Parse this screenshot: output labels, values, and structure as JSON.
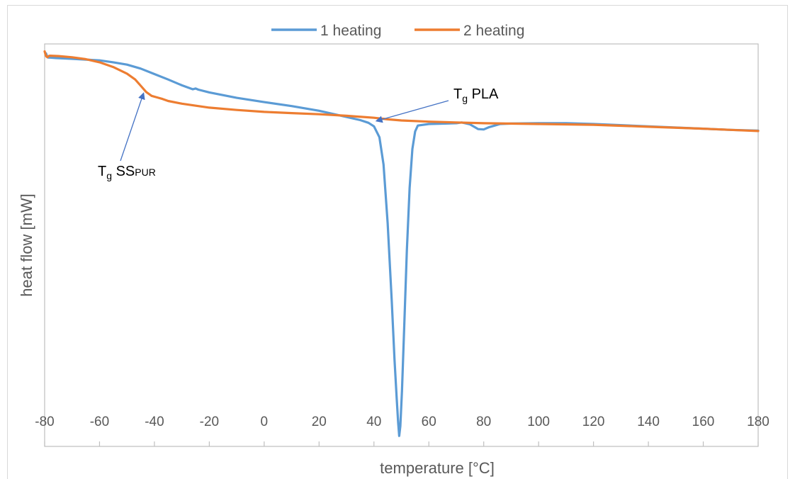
{
  "chart_data": {
    "type": "line",
    "title": "",
    "xlabel": "temperature [°C]",
    "ylabel": "heat flow [mW]",
    "xlim": [
      -80,
      180
    ],
    "y_ticks_shown": false,
    "x_ticks": [
      -80,
      -60,
      -40,
      -20,
      0,
      20,
      40,
      60,
      80,
      100,
      120,
      140,
      160,
      180
    ],
    "legend": {
      "position": "top-center"
    },
    "series": [
      {
        "name": "1 heating",
        "color": "#5b9bd5",
        "points": [
          [
            -79.5,
            98.5
          ],
          [
            -79,
            97.5
          ],
          [
            -78.5,
            97.4
          ],
          [
            -78,
            97.4
          ],
          [
            -76,
            97.3
          ],
          [
            -70,
            97.1
          ],
          [
            -60,
            96.7
          ],
          [
            -55,
            96.2
          ],
          [
            -50,
            95.6
          ],
          [
            -45,
            94.6
          ],
          [
            -40,
            93.2
          ],
          [
            -35,
            91.8
          ],
          [
            -30,
            90.3
          ],
          [
            -26,
            89.3
          ],
          [
            -25,
            89.5
          ],
          [
            -24,
            89.2
          ],
          [
            -20,
            88.5
          ],
          [
            -10,
            87.1
          ],
          [
            0,
            86.0
          ],
          [
            10,
            85.0
          ],
          [
            20,
            83.8
          ],
          [
            30,
            82.2
          ],
          [
            35,
            81.4
          ],
          [
            38,
            80.7
          ],
          [
            40,
            79.8
          ],
          [
            42,
            77.0
          ],
          [
            43.5,
            70.0
          ],
          [
            45,
            55.0
          ],
          [
            46.5,
            35.0
          ],
          [
            47.5,
            20.0
          ],
          [
            48.3,
            10.0
          ],
          [
            48.8,
            4.0
          ],
          [
            49.2,
            0.5
          ],
          [
            49.6,
            3.0
          ],
          [
            50.2,
            12.0
          ],
          [
            51,
            28.0
          ],
          [
            52,
            48.0
          ],
          [
            53,
            64.0
          ],
          [
            54,
            74.0
          ],
          [
            55,
            78.5
          ],
          [
            56,
            80.0
          ],
          [
            60,
            80.4
          ],
          [
            66,
            80.5
          ],
          [
            70,
            80.6
          ],
          [
            72,
            80.8
          ],
          [
            75,
            80.3
          ],
          [
            78,
            79.1
          ],
          [
            80,
            79.0
          ],
          [
            82,
            79.6
          ],
          [
            84,
            80.0
          ],
          [
            86,
            80.4
          ],
          [
            90,
            80.5
          ],
          [
            100,
            80.6
          ],
          [
            110,
            80.6
          ],
          [
            120,
            80.4
          ],
          [
            140,
            79.8
          ],
          [
            160,
            79.2
          ],
          [
            170,
            78.9
          ],
          [
            180,
            78.7
          ]
        ]
      },
      {
        "name": "2 heating",
        "color": "#ed7d31",
        "points": [
          [
            -80,
            99.0
          ],
          [
            -79.5,
            97.8
          ],
          [
            -79,
            97.5
          ],
          [
            -78.5,
            97.8
          ],
          [
            -78,
            97.9
          ],
          [
            -75,
            97.8
          ],
          [
            -70,
            97.5
          ],
          [
            -65,
            97.0
          ],
          [
            -60,
            96.2
          ],
          [
            -55,
            95.0
          ],
          [
            -50,
            93.3
          ],
          [
            -47,
            91.8
          ],
          [
            -45,
            90.2
          ],
          [
            -43,
            88.6
          ],
          [
            -41,
            87.6
          ],
          [
            -39,
            87.2
          ],
          [
            -37,
            86.8
          ],
          [
            -35,
            86.3
          ],
          [
            -30,
            85.6
          ],
          [
            -20,
            84.6
          ],
          [
            -10,
            84.0
          ],
          [
            0,
            83.5
          ],
          [
            10,
            83.2
          ],
          [
            20,
            82.9
          ],
          [
            30,
            82.5
          ],
          [
            40,
            82.0
          ],
          [
            45,
            81.6
          ],
          [
            50,
            81.3
          ],
          [
            60,
            81.0
          ],
          [
            70,
            80.8
          ],
          [
            80,
            80.6
          ],
          [
            100,
            80.4
          ],
          [
            120,
            80.2
          ],
          [
            140,
            79.7
          ],
          [
            160,
            79.2
          ],
          [
            170,
            78.9
          ],
          [
            180,
            78.6
          ]
        ]
      }
    ],
    "annotations": [
      {
        "base": "T",
        "sub": "g",
        "rest": " SS",
        "rest_sub": "PUR",
        "arrow_to": [
          -44,
          88.2
        ]
      },
      {
        "base": "T",
        "sub": "g",
        "rest": " PLA",
        "rest_sub": "",
        "arrow_to": [
          41,
          81.2
        ]
      }
    ]
  }
}
